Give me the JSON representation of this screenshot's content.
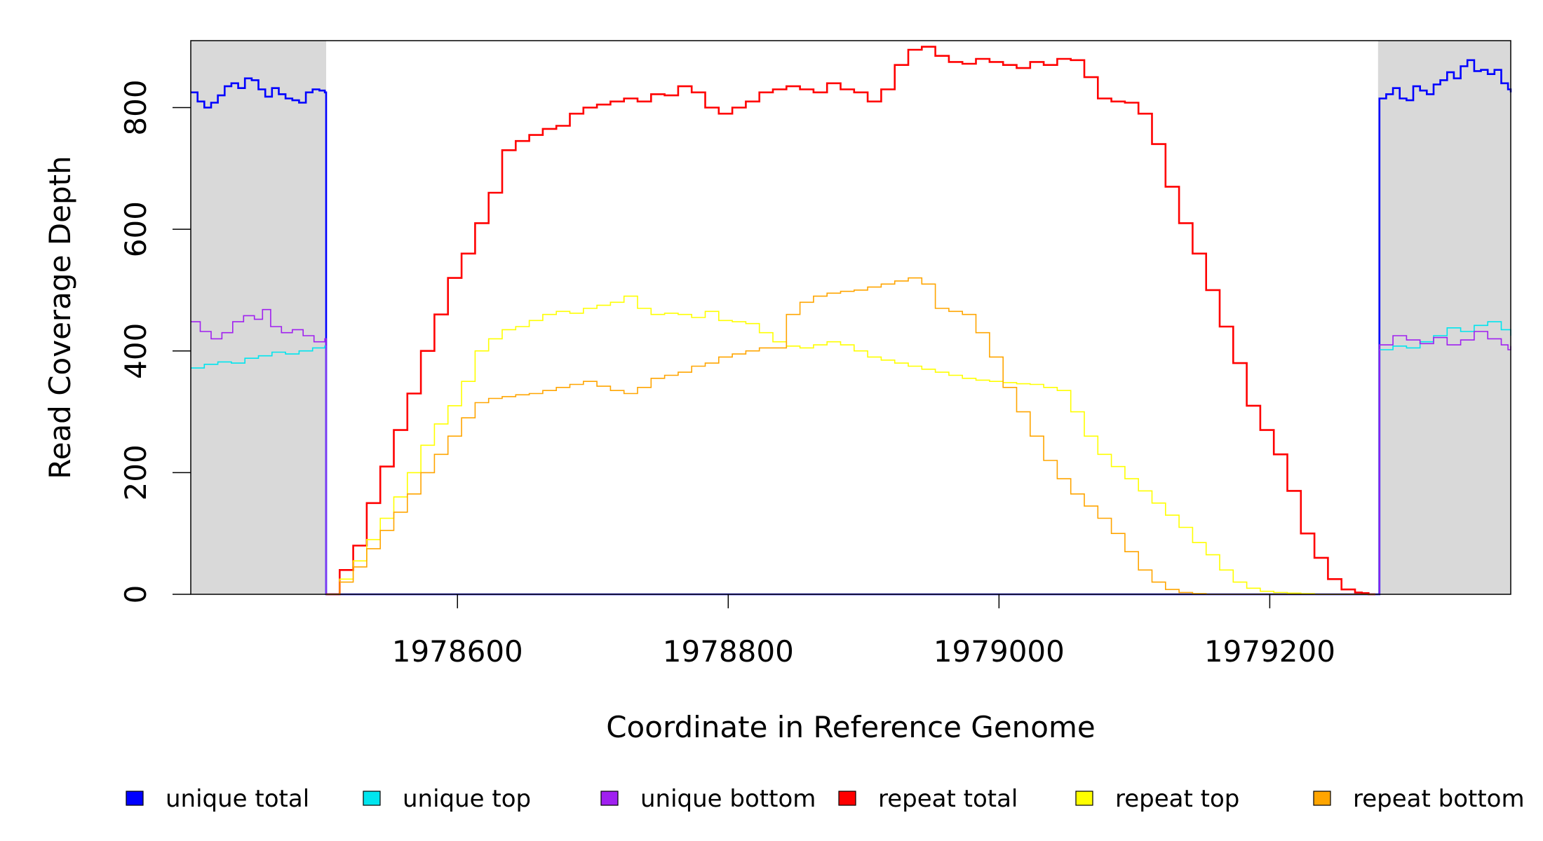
{
  "chart_data": {
    "type": "line",
    "title": "",
    "xlabel": "Coordinate in Reference Genome",
    "ylabel": "Read Coverage Depth",
    "xlim": [
      1978403,
      1979378
    ],
    "ylim": [
      0,
      910
    ],
    "xticks": [
      1978600,
      1978800,
      1979000,
      1979200
    ],
    "xtick_labels": [
      "1978600",
      "1978800",
      "1979000",
      "1979200"
    ],
    "yticks": [
      0,
      200,
      400,
      600,
      800
    ],
    "ytick_labels": [
      "0",
      "200",
      "400",
      "600",
      "800"
    ],
    "grid": false,
    "legend_position": "bottom",
    "shaded_regions": [
      {
        "x": [
          1978403,
          1978503
        ],
        "color": "#d9d9d9"
      },
      {
        "x": [
          1979280,
          1979378
        ],
        "color": "#d9d9d9"
      }
    ],
    "series": [
      {
        "name": "unique total",
        "color": "#0000ff",
        "width": 2.6,
        "x": [
          1978403,
          1978408,
          1978413,
          1978418,
          1978423,
          1978428,
          1978433,
          1978438,
          1978443,
          1978448,
          1978453,
          1978458,
          1978463,
          1978468,
          1978473,
          1978478,
          1978483,
          1978488,
          1978493,
          1978498,
          1978502,
          1978503,
          1978504,
          1979279,
          1979280,
          1979281,
          1979286,
          1979291,
          1979296,
          1979301,
          1979306,
          1979311,
          1979316,
          1979321,
          1979326,
          1979331,
          1979336,
          1979341,
          1979346,
          1979351,
          1979356,
          1979361,
          1979366,
          1979371,
          1979376,
          1979378
        ],
        "y": [
          825,
          810,
          800,
          808,
          820,
          835,
          840,
          832,
          848,
          845,
          830,
          818,
          832,
          822,
          815,
          812,
          808,
          825,
          830,
          828,
          825,
          0,
          0,
          0,
          0,
          815,
          822,
          832,
          815,
          812,
          835,
          828,
          822,
          838,
          845,
          858,
          848,
          868,
          878,
          860,
          862,
          855,
          862,
          840,
          830,
          825
        ]
      },
      {
        "name": "unique top",
        "color": "#00e5ee",
        "width": 1.6,
        "x": [
          1978403,
          1978413,
          1978423,
          1978433,
          1978443,
          1978453,
          1978463,
          1978473,
          1978483,
          1978493,
          1978502,
          1978503,
          1978504,
          1979279,
          1979280,
          1979281,
          1979291,
          1979301,
          1979311,
          1979321,
          1979331,
          1979341,
          1979351,
          1979361,
          1979371,
          1979378
        ],
        "y": [
          372,
          378,
          382,
          380,
          388,
          392,
          398,
          395,
          400,
          405,
          408,
          0,
          0,
          0,
          0,
          402,
          408,
          405,
          415,
          425,
          438,
          432,
          442,
          448,
          435,
          425
        ]
      },
      {
        "name": "unique bottom",
        "color": "#a020f0",
        "width": 1.6,
        "x": [
          1978403,
          1978410,
          1978418,
          1978426,
          1978434,
          1978442,
          1978450,
          1978456,
          1978462,
          1978470,
          1978478,
          1978486,
          1978494,
          1978502,
          1978503,
          1978504,
          1979279,
          1979280,
          1979281,
          1979291,
          1979301,
          1979311,
          1979321,
          1979331,
          1979341,
          1979351,
          1979361,
          1979371,
          1979376,
          1979378
        ],
        "y": [
          448,
          432,
          420,
          430,
          448,
          458,
          452,
          468,
          440,
          430,
          435,
          425,
          415,
          420,
          0,
          0,
          0,
          0,
          410,
          425,
          418,
          412,
          422,
          410,
          418,
          432,
          420,
          410,
          402,
          408
        ]
      },
      {
        "name": "repeat total",
        "color": "#ff0000",
        "width": 2.6,
        "x": [
          1978503,
          1978513,
          1978523,
          1978533,
          1978543,
          1978553,
          1978563,
          1978573,
          1978583,
          1978593,
          1978603,
          1978613,
          1978623,
          1978633,
          1978643,
          1978653,
          1978663,
          1978673,
          1978683,
          1978693,
          1978703,
          1978713,
          1978723,
          1978733,
          1978743,
          1978753,
          1978763,
          1978773,
          1978783,
          1978793,
          1978803,
          1978813,
          1978823,
          1978833,
          1978843,
          1978853,
          1978863,
          1978873,
          1978883,
          1978893,
          1978903,
          1978913,
          1978923,
          1978933,
          1978943,
          1978953,
          1978963,
          1978973,
          1978983,
          1978993,
          1979003,
          1979013,
          1979023,
          1979033,
          1979043,
          1979053,
          1979063,
          1979073,
          1979083,
          1979093,
          1979103,
          1979113,
          1979123,
          1979133,
          1979143,
          1979153,
          1979163,
          1979173,
          1979183,
          1979193,
          1979203,
          1979213,
          1979223,
          1979233,
          1979243,
          1979253,
          1979263,
          1979268,
          1979273,
          1979278
        ],
        "y": [
          0,
          40,
          80,
          150,
          210,
          270,
          330,
          400,
          460,
          520,
          560,
          610,
          660,
          730,
          745,
          755,
          765,
          770,
          790,
          800,
          805,
          810,
          815,
          810,
          822,
          820,
          835,
          825,
          800,
          790,
          800,
          810,
          825,
          830,
          835,
          830,
          825,
          840,
          830,
          825,
          810,
          830,
          870,
          895,
          900,
          885,
          875,
          872,
          880,
          875,
          870,
          865,
          875,
          870,
          880,
          878,
          850,
          815,
          810,
          808,
          790,
          740,
          670,
          610,
          560,
          500,
          440,
          380,
          310,
          270,
          230,
          170,
          100,
          60,
          25,
          8,
          3,
          2,
          0,
          0
        ]
      },
      {
        "name": "repeat top",
        "color": "#ffff00",
        "width": 1.6,
        "x": [
          1978503,
          1978513,
          1978523,
          1978533,
          1978543,
          1978553,
          1978563,
          1978573,
          1978583,
          1978593,
          1978603,
          1978613,
          1978623,
          1978633,
          1978643,
          1978653,
          1978663,
          1978673,
          1978683,
          1978693,
          1978703,
          1978713,
          1978723,
          1978733,
          1978743,
          1978753,
          1978763,
          1978773,
          1978783,
          1978793,
          1978803,
          1978813,
          1978823,
          1978833,
          1978843,
          1978853,
          1978863,
          1978873,
          1978883,
          1978893,
          1978903,
          1978913,
          1978923,
          1978933,
          1978943,
          1978953,
          1978963,
          1978973,
          1978983,
          1978993,
          1979003,
          1979013,
          1979023,
          1979033,
          1979043,
          1979053,
          1979063,
          1979073,
          1979083,
          1979093,
          1979103,
          1979113,
          1979123,
          1979133,
          1979143,
          1979153,
          1979163,
          1979173,
          1979183,
          1979193,
          1979203,
          1979213,
          1979223,
          1979233,
          1979243,
          1979253,
          1979263,
          1979268,
          1979273,
          1979278
        ],
        "y": [
          0,
          25,
          55,
          90,
          125,
          160,
          200,
          245,
          280,
          310,
          350,
          400,
          420,
          435,
          440,
          450,
          460,
          465,
          462,
          470,
          475,
          480,
          490,
          470,
          460,
          462,
          460,
          455,
          465,
          450,
          448,
          445,
          430,
          415,
          408,
          405,
          410,
          415,
          410,
          400,
          390,
          385,
          380,
          375,
          370,
          365,
          360,
          355,
          352,
          350,
          348,
          346,
          345,
          340,
          335,
          300,
          260,
          230,
          210,
          190,
          170,
          150,
          130,
          110,
          85,
          65,
          40,
          20,
          10,
          5,
          3,
          2,
          1,
          0,
          0,
          0,
          0,
          0,
          0,
          0
        ]
      },
      {
        "name": "repeat bottom",
        "color": "#ffa500",
        "width": 1.6,
        "x": [
          1978503,
          1978513,
          1978523,
          1978533,
          1978543,
          1978553,
          1978563,
          1978573,
          1978583,
          1978593,
          1978603,
          1978613,
          1978623,
          1978633,
          1978643,
          1978653,
          1978663,
          1978673,
          1978683,
          1978693,
          1978703,
          1978713,
          1978723,
          1978733,
          1978743,
          1978753,
          1978763,
          1978773,
          1978783,
          1978793,
          1978803,
          1978813,
          1978823,
          1978833,
          1978843,
          1978853,
          1978863,
          1978873,
          1978883,
          1978893,
          1978903,
          1978913,
          1978923,
          1978933,
          1978943,
          1978953,
          1978963,
          1978973,
          1978983,
          1978993,
          1979003,
          1979013,
          1979023,
          1979033,
          1979043,
          1979053,
          1979063,
          1979073,
          1979083,
          1979093,
          1979103,
          1979113,
          1979123,
          1979133,
          1979143,
          1979153,
          1979163,
          1979173,
          1979183,
          1979193,
          1979203,
          1979213,
          1979223,
          1979233,
          1979243,
          1979253,
          1979263,
          1979268,
          1979273,
          1979278
        ],
        "y": [
          0,
          20,
          45,
          75,
          105,
          135,
          165,
          200,
          230,
          260,
          290,
          315,
          322,
          325,
          328,
          330,
          335,
          340,
          345,
          350,
          342,
          335,
          330,
          340,
          355,
          360,
          365,
          375,
          380,
          390,
          395,
          400,
          405,
          405,
          460,
          480,
          490,
          495,
          498,
          500,
          505,
          510,
          515,
          520,
          510,
          470,
          465,
          460,
          430,
          390,
          340,
          300,
          260,
          220,
          190,
          165,
          145,
          125,
          100,
          70,
          40,
          20,
          8,
          3,
          1,
          0,
          0,
          0,
          0,
          0,
          0,
          0,
          0,
          0,
          0,
          0,
          0,
          0,
          0,
          0
        ]
      }
    ]
  }
}
